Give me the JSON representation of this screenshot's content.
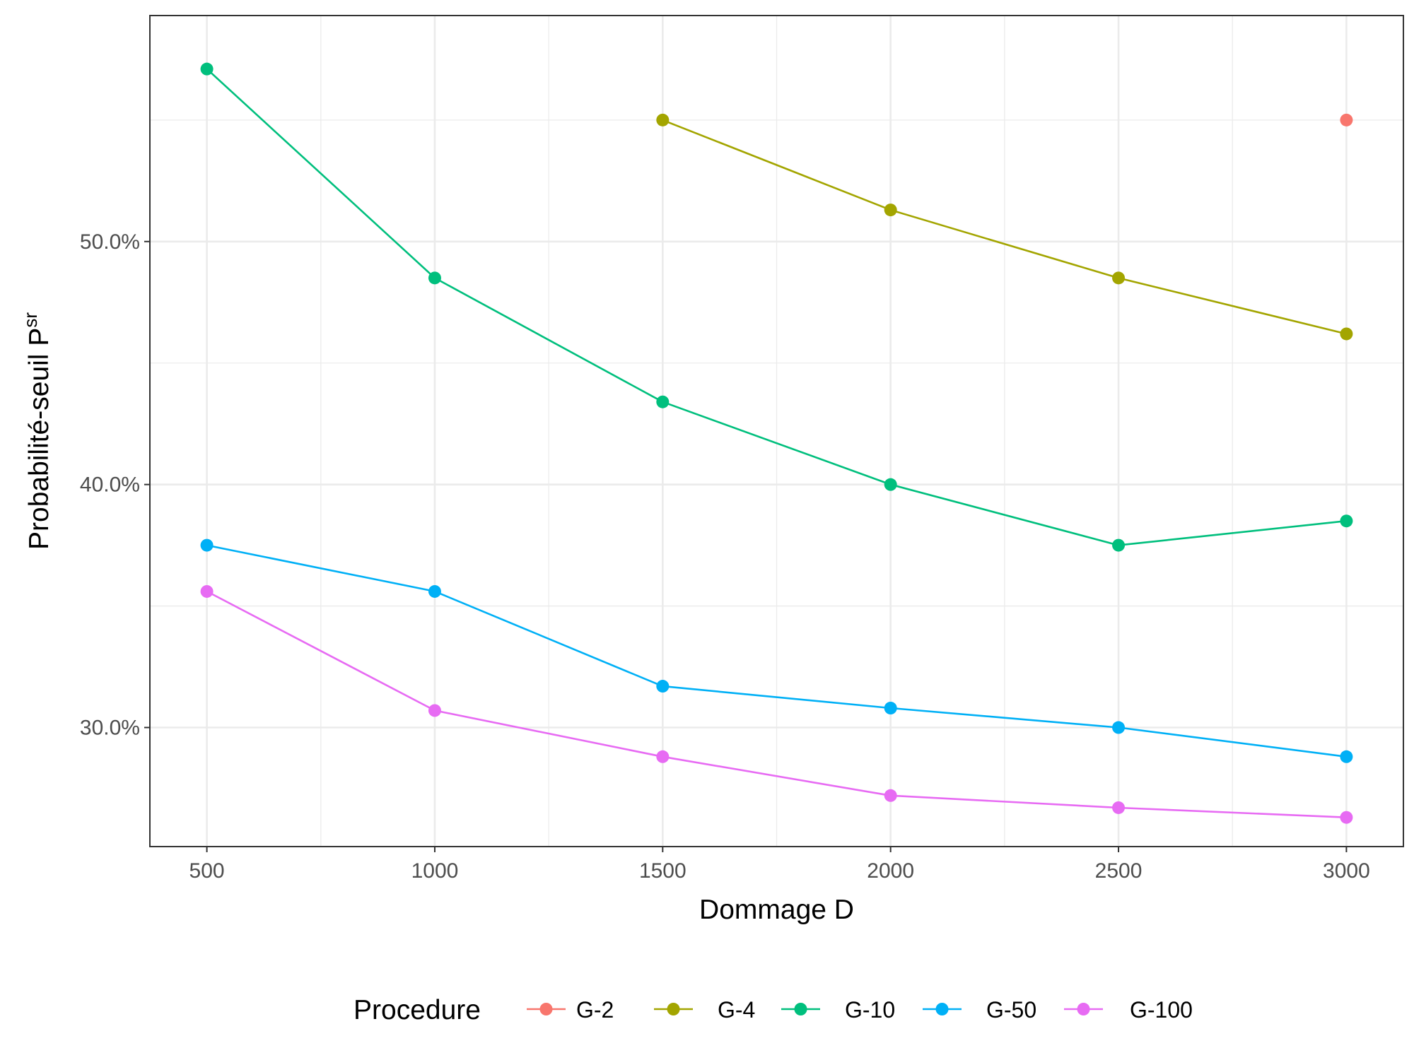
{
  "chart_data": {
    "type": "line",
    "xlabel": "Dommage D",
    "ylabel": "Probabilité-seuil P",
    "ylabel_superscript": "sr",
    "x": [
      500,
      1000,
      1500,
      2000,
      2500,
      3000
    ],
    "x_tick_labels": [
      "500",
      "1000",
      "1500",
      "2000",
      "2500",
      "3000"
    ],
    "xlim": [
      375,
      3125
    ],
    "ylim": [
      25.1,
      59.3
    ],
    "y_ticks": [
      30,
      40,
      50
    ],
    "y_tick_labels": [
      "30.0%",
      "40.0%",
      "50.0%"
    ],
    "grid": true,
    "legend_title": "Procedure",
    "legend_position": "bottom",
    "series": [
      {
        "name": "G-2",
        "color": "#F8766D",
        "x": [
          3000
        ],
        "values": [
          55.0
        ]
      },
      {
        "name": "G-4",
        "color": "#A3A500",
        "x": [
          1500,
          2000,
          2500,
          3000
        ],
        "values": [
          55.0,
          51.3,
          48.5,
          46.2
        ]
      },
      {
        "name": "G-10",
        "color": "#00BF7D",
        "x": [
          500,
          1000,
          1500,
          2000,
          2500,
          3000
        ],
        "values": [
          57.1,
          48.5,
          43.4,
          40.0,
          37.5,
          38.5
        ]
      },
      {
        "name": "G-50",
        "color": "#00B0F6",
        "x": [
          500,
          1000,
          1500,
          2000,
          2500,
          3000
        ],
        "values": [
          37.5,
          35.6,
          31.7,
          30.8,
          30.0,
          28.8
        ]
      },
      {
        "name": "G-100",
        "color": "#E76BF3",
        "x": [
          500,
          1000,
          1500,
          2000,
          2500,
          3000
        ],
        "values": [
          35.6,
          30.7,
          28.8,
          27.2,
          26.7,
          26.3
        ]
      }
    ]
  }
}
